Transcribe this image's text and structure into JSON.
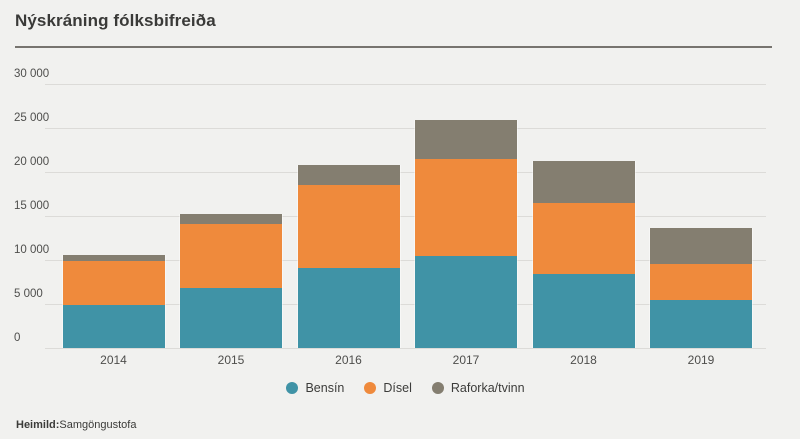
{
  "title": "Nýskráning fólksbifreiða",
  "footer": {
    "source_label": "Heimild:",
    "source_value": "Samgöngustofa"
  },
  "colors": {
    "background": "#f1f1ef",
    "gridline": "#dcdbd8",
    "title_rule": "#77746f",
    "bensin": "#4093a6",
    "disel": "#ef8a3c",
    "raforka_tvinn": "#847e70"
  },
  "chart_data": {
    "type": "bar",
    "stacked": true,
    "title": "Nýskráning fólksbifreiða",
    "xlabel": "",
    "ylabel": "",
    "grid": true,
    "legend_position": "bottom",
    "ylim": [
      0,
      30000
    ],
    "ytick_step": 5000,
    "ytick_labels": [
      "0",
      "5 000",
      "10 000",
      "15 000",
      "20 000",
      "25 000",
      "30 000"
    ],
    "categories": [
      "2014",
      "2015",
      "2016",
      "2017",
      "2018",
      "2019"
    ],
    "series": [
      {
        "name": "Bensín",
        "key": "bensin",
        "color": "#4093a6",
        "values": [
          4900,
          6800,
          9100,
          10500,
          8450,
          5450
        ]
      },
      {
        "name": "Dísel",
        "key": "disel",
        "color": "#ef8a3c",
        "values": [
          5000,
          7250,
          9400,
          11000,
          8000,
          4100
        ]
      },
      {
        "name": "Raforka/tvinn",
        "key": "raforka-tvinn",
        "color": "#847e70",
        "values": [
          680,
          1150,
          2300,
          4400,
          4800,
          4100
        ]
      }
    ],
    "totals": [
      10580,
      15200,
      20800,
      25900,
      21250,
      13650
    ]
  }
}
